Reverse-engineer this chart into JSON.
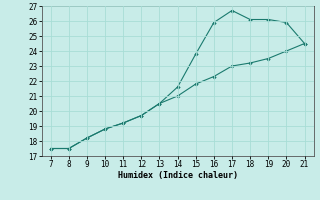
{
  "x_data": [
    7,
    8,
    9,
    10,
    11,
    12,
    13,
    14,
    15,
    16,
    17,
    18,
    19,
    20,
    21
  ],
  "y_data": [
    17.5,
    17.5,
    18.2,
    18.8,
    19.2,
    19.7,
    20.5,
    21.6,
    23.8,
    25.9,
    26.7,
    26.1,
    26.1,
    25.9,
    24.5
  ],
  "y_data2": [
    17.5,
    17.5,
    18.2,
    18.8,
    19.2,
    19.7,
    20.5,
    21.0,
    21.8,
    22.3,
    23.0,
    23.2,
    23.5,
    24.0,
    24.5
  ],
  "xlabel": "Humidex (Indice chaleur)",
  "xlim": [
    6.5,
    21.5
  ],
  "ylim": [
    17,
    27
  ],
  "xticks": [
    7,
    8,
    9,
    10,
    11,
    12,
    13,
    14,
    15,
    16,
    17,
    18,
    19,
    20,
    21
  ],
  "yticks": [
    17,
    18,
    19,
    20,
    21,
    22,
    23,
    24,
    25,
    26,
    27
  ],
  "line_color": "#1a7a6e",
  "bg_color": "#c8ece8",
  "grid_color": "#a8ddd6"
}
